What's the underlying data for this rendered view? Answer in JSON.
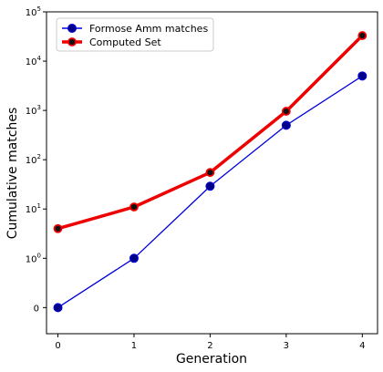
{
  "chart_data": {
    "type": "line",
    "xlabel": "Generation",
    "ylabel": "Cumulative matches",
    "x": [
      0,
      1,
      2,
      3,
      4
    ],
    "xticks": [
      "0",
      "1",
      "2",
      "3",
      "4"
    ],
    "yscale": "symlog",
    "ylim": [
      -0.5,
      100000
    ],
    "yticks": [
      {
        "value": 0,
        "base": "0",
        "exp": ""
      },
      {
        "value": 1,
        "base": "10",
        "exp": "0"
      },
      {
        "value": 10,
        "base": "10",
        "exp": "1"
      },
      {
        "value": 100,
        "base": "10",
        "exp": "2"
      },
      {
        "value": 1000,
        "base": "10",
        "exp": "3"
      },
      {
        "value": 10000,
        "base": "10",
        "exp": "4"
      },
      {
        "value": 100000,
        "base": "10",
        "exp": "5"
      }
    ],
    "legend_position": "top-left",
    "grid": false,
    "series": [
      {
        "name": "Formose Amm matches",
        "values": [
          0,
          1,
          29,
          500,
          5000
        ],
        "line_color": "#0000dd",
        "marker_color": "#00008b"
      },
      {
        "name": "Computed Set",
        "values": [
          4,
          11,
          55,
          960,
          33000
        ],
        "line_color": "#ee0000",
        "marker_color": "#111111"
      }
    ]
  }
}
